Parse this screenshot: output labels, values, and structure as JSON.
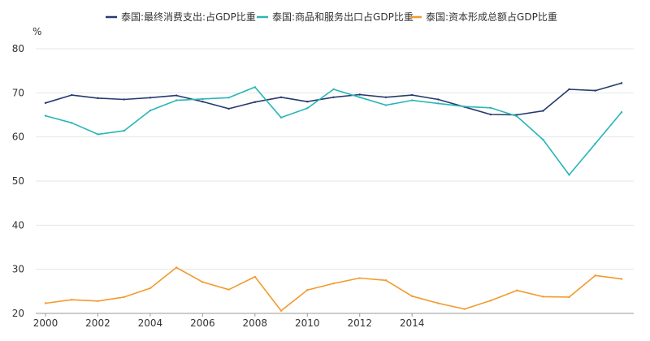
{
  "chart_data": {
    "type": "line",
    "title": "",
    "xlabel": "",
    "ylabel": "%",
    "ylim": [
      20,
      80
    ],
    "yticks": [
      20,
      30,
      40,
      50,
      60,
      70,
      80
    ],
    "x": [
      2000,
      2001,
      2002,
      2003,
      2004,
      2005,
      2006,
      2007,
      2008,
      2009,
      2010,
      2011,
      2012,
      2013,
      2014,
      2015,
      2016,
      2017,
      2018,
      2019,
      2020,
      2021,
      2022
    ],
    "xtick_labels": [
      "2000",
      "2002",
      "2004",
      "2006",
      "2008",
      "2010",
      "2012",
      "2014"
    ],
    "legend_position": "top",
    "grid": true,
    "series": [
      {
        "name": "泰国:最终消费支出:占GDP比重",
        "color": "#253b6e",
        "values": [
          67.7,
          69.5,
          68.8,
          68.5,
          68.9,
          69.4,
          68.0,
          66.4,
          67.9,
          69.0,
          68.0,
          69.0,
          69.6,
          69.0,
          69.5,
          68.5,
          66.8,
          65.1,
          65.0,
          65.9,
          70.8,
          70.5,
          72.2
        ]
      },
      {
        "name": "泰国:商品和服务出口占GDP比重",
        "color": "#2ab5b8",
        "values": [
          64.8,
          63.2,
          60.6,
          61.4,
          66.0,
          68.3,
          68.6,
          68.9,
          71.3,
          64.4,
          66.5,
          70.8,
          69.0,
          67.2,
          68.3,
          67.6,
          66.9,
          66.6,
          64.7,
          59.4,
          51.4,
          58.5,
          65.6
        ]
      },
      {
        "name": "泰国:资本形成总额占GDP比重",
        "color": "#f29a2e",
        "values": [
          22.3,
          23.1,
          22.8,
          23.7,
          25.7,
          30.4,
          27.1,
          25.4,
          28.3,
          20.6,
          25.3,
          26.8,
          28.0,
          27.5,
          23.9,
          22.3,
          21.0,
          22.9,
          25.2,
          23.8,
          23.7,
          28.6,
          27.8
        ]
      }
    ]
  }
}
